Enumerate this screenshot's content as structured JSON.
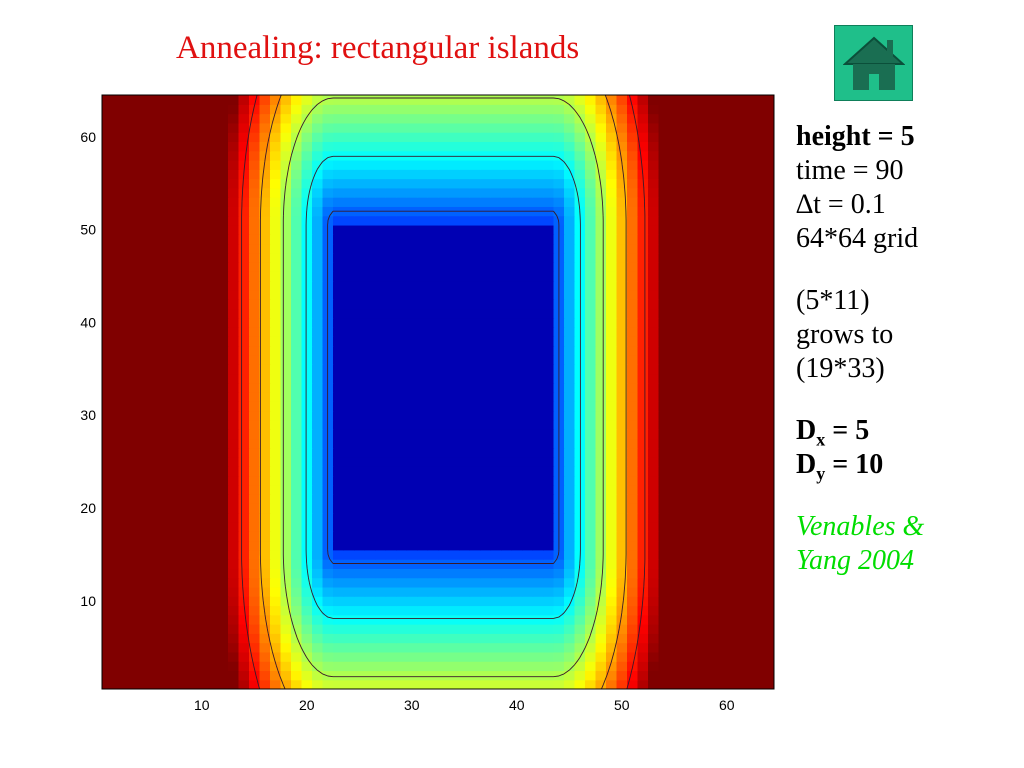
{
  "slide": {
    "title": "Annealing: rectangular islands",
    "home_icon": "home-icon"
  },
  "info": {
    "height_label": "height = 5",
    "time_label": "time = 90",
    "dt_label": "∆t = 0.1",
    "grid_label": "64*64 grid",
    "growth_start": "(5*11)",
    "growth_verb": "grows to",
    "growth_end": "(19*33)",
    "dx_symbol": "D",
    "dx_sub": "x",
    "dx_value": " = 5",
    "dy_symbol": "D",
    "dy_sub": "y",
    "dy_value": " = 10",
    "citation_line1": "Venables &",
    "citation_line2": "Yang 2004"
  },
  "chart_data": {
    "type": "heatmap",
    "colormap": "jet",
    "xlim": [
      0.5,
      64.5
    ],
    "ylim": [
      0.5,
      64.5
    ],
    "xticks": [
      10,
      20,
      30,
      40,
      50,
      60
    ],
    "yticks": [
      10,
      20,
      30,
      40,
      50,
      60
    ],
    "island": {
      "x_range": [
        22.5,
        43.5
      ],
      "y_range": [
        15.5,
        50.5
      ],
      "level": 0.05
    },
    "contour_levels": [
      0.22,
      0.38,
      0.55,
      0.72,
      0.86
    ],
    "grid": false
  }
}
